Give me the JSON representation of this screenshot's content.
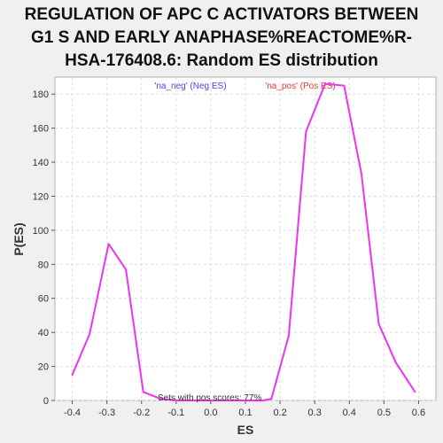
{
  "chart_data": {
    "type": "line",
    "title_lines": [
      "REGULATION OF APC C ACTIVATORS BETWEEN",
      "G1 S AND EARLY ANAPHASE%REACTOME%R-",
      "HSA-176408.6: Random ES distribution"
    ],
    "xlabel": "ES",
    "ylabel": "P(ES)",
    "xlim": [
      -0.45,
      0.65
    ],
    "ylim": [
      0,
      190
    ],
    "x_ticks": [
      "-0.4",
      "-0.3",
      "-0.2",
      "-0.1",
      "0.0",
      "0.1",
      "0.2",
      "0.3",
      "0.4",
      "0.5",
      "0.6"
    ],
    "y_ticks": [
      "0",
      "20",
      "40",
      "60",
      "80",
      "100",
      "120",
      "140",
      "160",
      "180"
    ],
    "grid": true,
    "legend": [
      {
        "label": "'na_neg' (Neg ES)",
        "color": "#4444ee"
      },
      {
        "label": "'na_pos' (Pos ES)",
        "color": "#ee3333"
      }
    ],
    "annotation": "Sets with pos scores: 77%",
    "series": [
      {
        "color": "#ee33ee",
        "x": [
          -0.4,
          -0.35,
          -0.295,
          -0.245,
          -0.195,
          -0.145,
          -0.095,
          -0.045,
          0.005,
          0.055,
          0.105,
          0.15,
          0.175,
          0.225,
          0.275,
          0.33,
          0.385,
          0.435,
          0.485,
          0.535,
          0.59
        ],
        "y": [
          15,
          39,
          92,
          77,
          5,
          1,
          0,
          0,
          0,
          0,
          0,
          0,
          1,
          38,
          158,
          186,
          185,
          133,
          45,
          22,
          5
        ]
      }
    ]
  }
}
